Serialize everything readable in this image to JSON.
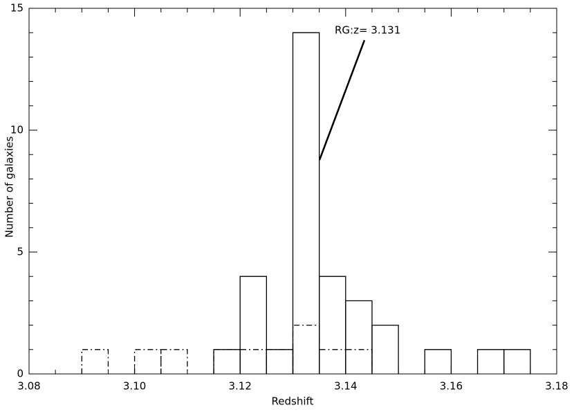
{
  "chart_data": {
    "type": "histogram",
    "xlabel": "Redshift",
    "ylabel": "Number of galaxies",
    "annotation": "RG:z= 3.131",
    "bins": [
      3.09,
      3.095,
      3.1,
      3.105,
      3.11,
      3.115,
      3.12,
      3.125,
      3.13,
      3.135,
      3.14,
      3.145,
      3.15,
      3.155,
      3.16,
      3.165,
      3.17,
      3.175
    ],
    "series": [
      {
        "color": "#000000",
        "linestyle": "solid",
        "values": [
          0,
          0,
          0,
          0,
          0,
          1,
          4,
          1,
          14,
          4,
          3,
          2,
          0,
          1,
          0,
          1,
          1
        ]
      },
      {
        "color": "#000000",
        "linestyle": "dashdot",
        "values": [
          1,
          0,
          1,
          1,
          0,
          1,
          1,
          1,
          2,
          1,
          1,
          0,
          0,
          0,
          0,
          0,
          0
        ]
      }
    ],
    "xlim": [
      3.08,
      3.18
    ],
    "xticks": [
      3.08,
      {
        "value": 3.1,
        "label": "3.10"
      },
      3.12,
      3.14,
      3.16,
      3.18
    ],
    "ylim": [
      0,
      15
    ],
    "yticks": [
      0,
      5,
      10,
      15
    ],
    "xminor": 4,
    "yminor": 5
  }
}
